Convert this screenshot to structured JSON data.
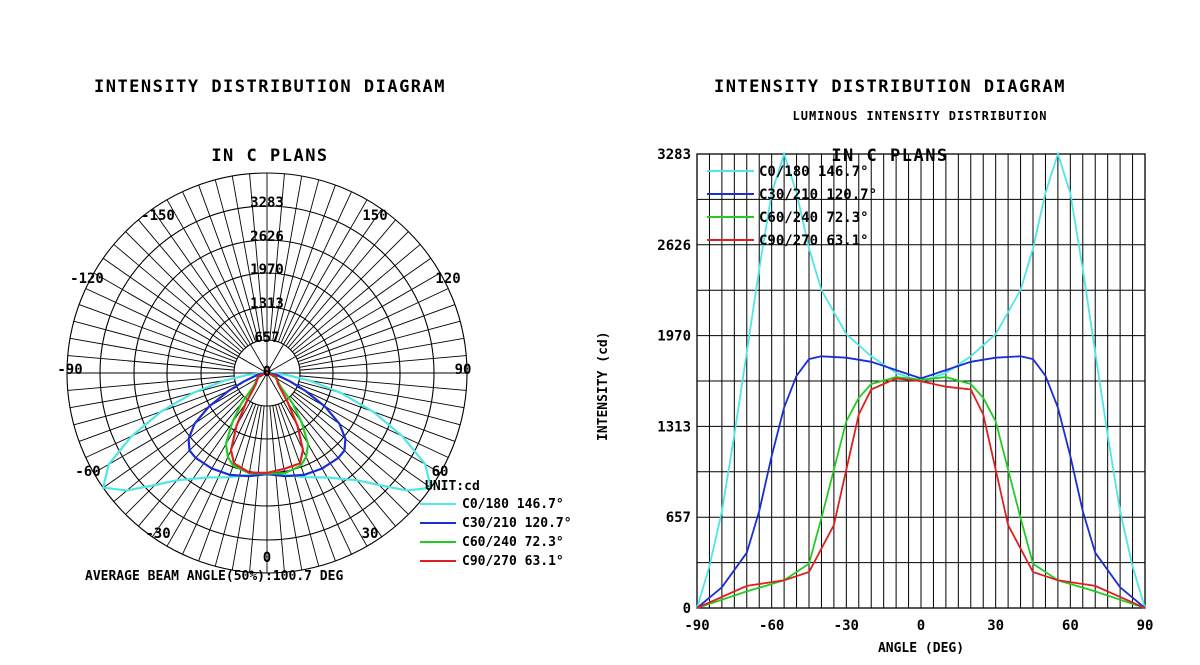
{
  "left": {
    "title_line1": "INTENSITY DISTRIBUTION DIAGRAM",
    "title_line2": "IN C PLANS",
    "footer": "AVERAGE BEAM ANGLE(50%):100.7 DEG",
    "unit": "UNIT:cd",
    "angle_labels": [
      "-150",
      "150",
      "-120",
      "120",
      "-90",
      "90",
      "-60",
      "60",
      "-30",
      "30",
      "0"
    ],
    "ring_labels": [
      "3283",
      "2626",
      "1970",
      "1313",
      "657",
      "0"
    ],
    "legend": [
      {
        "label": "C0/180 146.7°",
        "color": "#4fe6e6"
      },
      {
        "label": "C30/210 120.7°",
        "color": "#1a2ed6"
      },
      {
        "label": "C60/240 72.3°",
        "color": "#22cc22"
      },
      {
        "label": "C90/270 63.1°",
        "color": "#e02020"
      }
    ]
  },
  "right": {
    "title_line1": "INTENSITY DISTRIBUTION DIAGRAM",
    "title_line2": "IN C PLANS",
    "subtitle": "LUMINOUS INTENSITY DISTRIBUTION"
  },
  "chart_data": [
    {
      "type": "polar",
      "title": "INTENSITY DISTRIBUTION DIAGRAM IN C PLANS",
      "unit": "cd",
      "rmax": 3283,
      "ring_ticks": [
        0,
        657,
        1313,
        1970,
        2626,
        3283
      ],
      "angle_ticks": [
        -150,
        -120,
        -90,
        -60,
        -30,
        0,
        30,
        60,
        90,
        120,
        150
      ],
      "series": [
        {
          "name": "C0/180 146.7°",
          "color": "#4fe6e6",
          "angles": [
            -90,
            -85,
            -80,
            -75,
            -70,
            -65,
            -60,
            -55,
            -50,
            -45,
            -40,
            -30,
            -20,
            -10,
            0,
            10,
            20,
            30,
            40,
            45,
            50,
            55,
            60,
            65,
            70,
            75,
            80,
            85,
            90
          ],
          "values": [
            0,
            300,
            700,
            1250,
            1850,
            2450,
            3000,
            3283,
            3000,
            2600,
            2300,
            1980,
            1820,
            1700,
            1640,
            1700,
            1820,
            1980,
            2300,
            2600,
            3000,
            3283,
            3000,
            2450,
            1850,
            1250,
            700,
            300,
            0
          ]
        },
        {
          "name": "C30/210 120.7°",
          "color": "#1a2ed6",
          "angles": [
            -90,
            -80,
            -70,
            -65,
            -60,
            -55,
            -50,
            -45,
            -40,
            -30,
            -20,
            -10,
            0,
            10,
            20,
            30,
            40,
            45,
            50,
            55,
            60,
            65,
            70,
            80,
            90
          ],
          "values": [
            0,
            150,
            400,
            700,
            1100,
            1450,
            1680,
            1800,
            1820,
            1810,
            1780,
            1720,
            1660,
            1720,
            1780,
            1810,
            1820,
            1800,
            1680,
            1450,
            1100,
            700,
            400,
            150,
            0
          ]
        },
        {
          "name": "C60/240 72.3°",
          "color": "#22cc22",
          "angles": [
            -90,
            -70,
            -55,
            -45,
            -40,
            -35,
            -30,
            -25,
            -20,
            -10,
            0,
            10,
            20,
            25,
            30,
            35,
            40,
            45,
            55,
            70,
            90
          ],
          "values": [
            0,
            120,
            200,
            320,
            650,
            1000,
            1350,
            1520,
            1620,
            1670,
            1650,
            1670,
            1620,
            1520,
            1350,
            1000,
            650,
            320,
            200,
            120,
            0
          ]
        },
        {
          "name": "C90/270 63.1°",
          "color": "#e02020",
          "angles": [
            -90,
            -70,
            -55,
            -45,
            -35,
            -30,
            -25,
            -20,
            -10,
            0,
            10,
            20,
            25,
            30,
            35,
            45,
            55,
            70,
            90
          ],
          "values": [
            0,
            160,
            200,
            260,
            600,
            1000,
            1400,
            1580,
            1660,
            1640,
            1600,
            1580,
            1400,
            1000,
            600,
            260,
            200,
            160,
            0
          ]
        }
      ]
    },
    {
      "type": "line",
      "title": "LUMINOUS INTENSITY DISTRIBUTION",
      "xlabel": "ANGLE (DEG)",
      "ylabel": "INTENSITY (cd)",
      "xlim": [
        -90,
        90
      ],
      "ylim": [
        0,
        3283
      ],
      "xticks": [
        -90,
        -60,
        -30,
        0,
        30,
        60,
        90
      ],
      "yticks": [
        0,
        657,
        1313,
        1970,
        2626,
        3283
      ],
      "grid": true,
      "legend_position": "top-left",
      "series": [
        {
          "name": "C0/180 146.7°",
          "color": "#4fe6e6",
          "x": [
            -90,
            -85,
            -80,
            -75,
            -70,
            -65,
            -60,
            -55,
            -50,
            -45,
            -40,
            -30,
            -20,
            -10,
            0,
            10,
            20,
            30,
            40,
            45,
            50,
            55,
            60,
            65,
            70,
            75,
            80,
            85,
            90
          ],
          "y": [
            0,
            300,
            700,
            1250,
            1850,
            2450,
            3000,
            3283,
            3000,
            2600,
            2300,
            1980,
            1820,
            1700,
            1640,
            1700,
            1820,
            1980,
            2300,
            2600,
            3000,
            3283,
            3000,
            2450,
            1850,
            1250,
            700,
            300,
            0
          ]
        },
        {
          "name": "C30/210 120.7°",
          "color": "#1a2ed6",
          "x": [
            -90,
            -80,
            -70,
            -65,
            -60,
            -55,
            -50,
            -45,
            -40,
            -30,
            -20,
            -10,
            0,
            10,
            20,
            30,
            40,
            45,
            50,
            55,
            60,
            65,
            70,
            80,
            90
          ],
          "y": [
            0,
            150,
            400,
            700,
            1100,
            1450,
            1680,
            1800,
            1820,
            1810,
            1780,
            1720,
            1660,
            1720,
            1780,
            1810,
            1820,
            1800,
            1680,
            1450,
            1100,
            700,
            400,
            150,
            0
          ]
        },
        {
          "name": "C60/240 72.3°",
          "color": "#22cc22",
          "x": [
            -90,
            -70,
            -55,
            -45,
            -40,
            -35,
            -30,
            -25,
            -20,
            -10,
            0,
            10,
            20,
            25,
            30,
            35,
            40,
            45,
            55,
            70,
            90
          ],
          "y": [
            0,
            120,
            200,
            320,
            650,
            1000,
            1350,
            1520,
            1620,
            1670,
            1650,
            1670,
            1620,
            1520,
            1350,
            1000,
            650,
            320,
            200,
            120,
            0
          ]
        },
        {
          "name": "C90/270 63.1°",
          "color": "#e02020",
          "x": [
            -90,
            -70,
            -55,
            -45,
            -35,
            -30,
            -25,
            -20,
            -10,
            0,
            10,
            20,
            25,
            30,
            35,
            45,
            55,
            70,
            90
          ],
          "y": [
            0,
            160,
            200,
            260,
            600,
            1000,
            1400,
            1580,
            1660,
            1640,
            1600,
            1580,
            1400,
            1000,
            600,
            260,
            200,
            160,
            0
          ]
        }
      ]
    }
  ]
}
